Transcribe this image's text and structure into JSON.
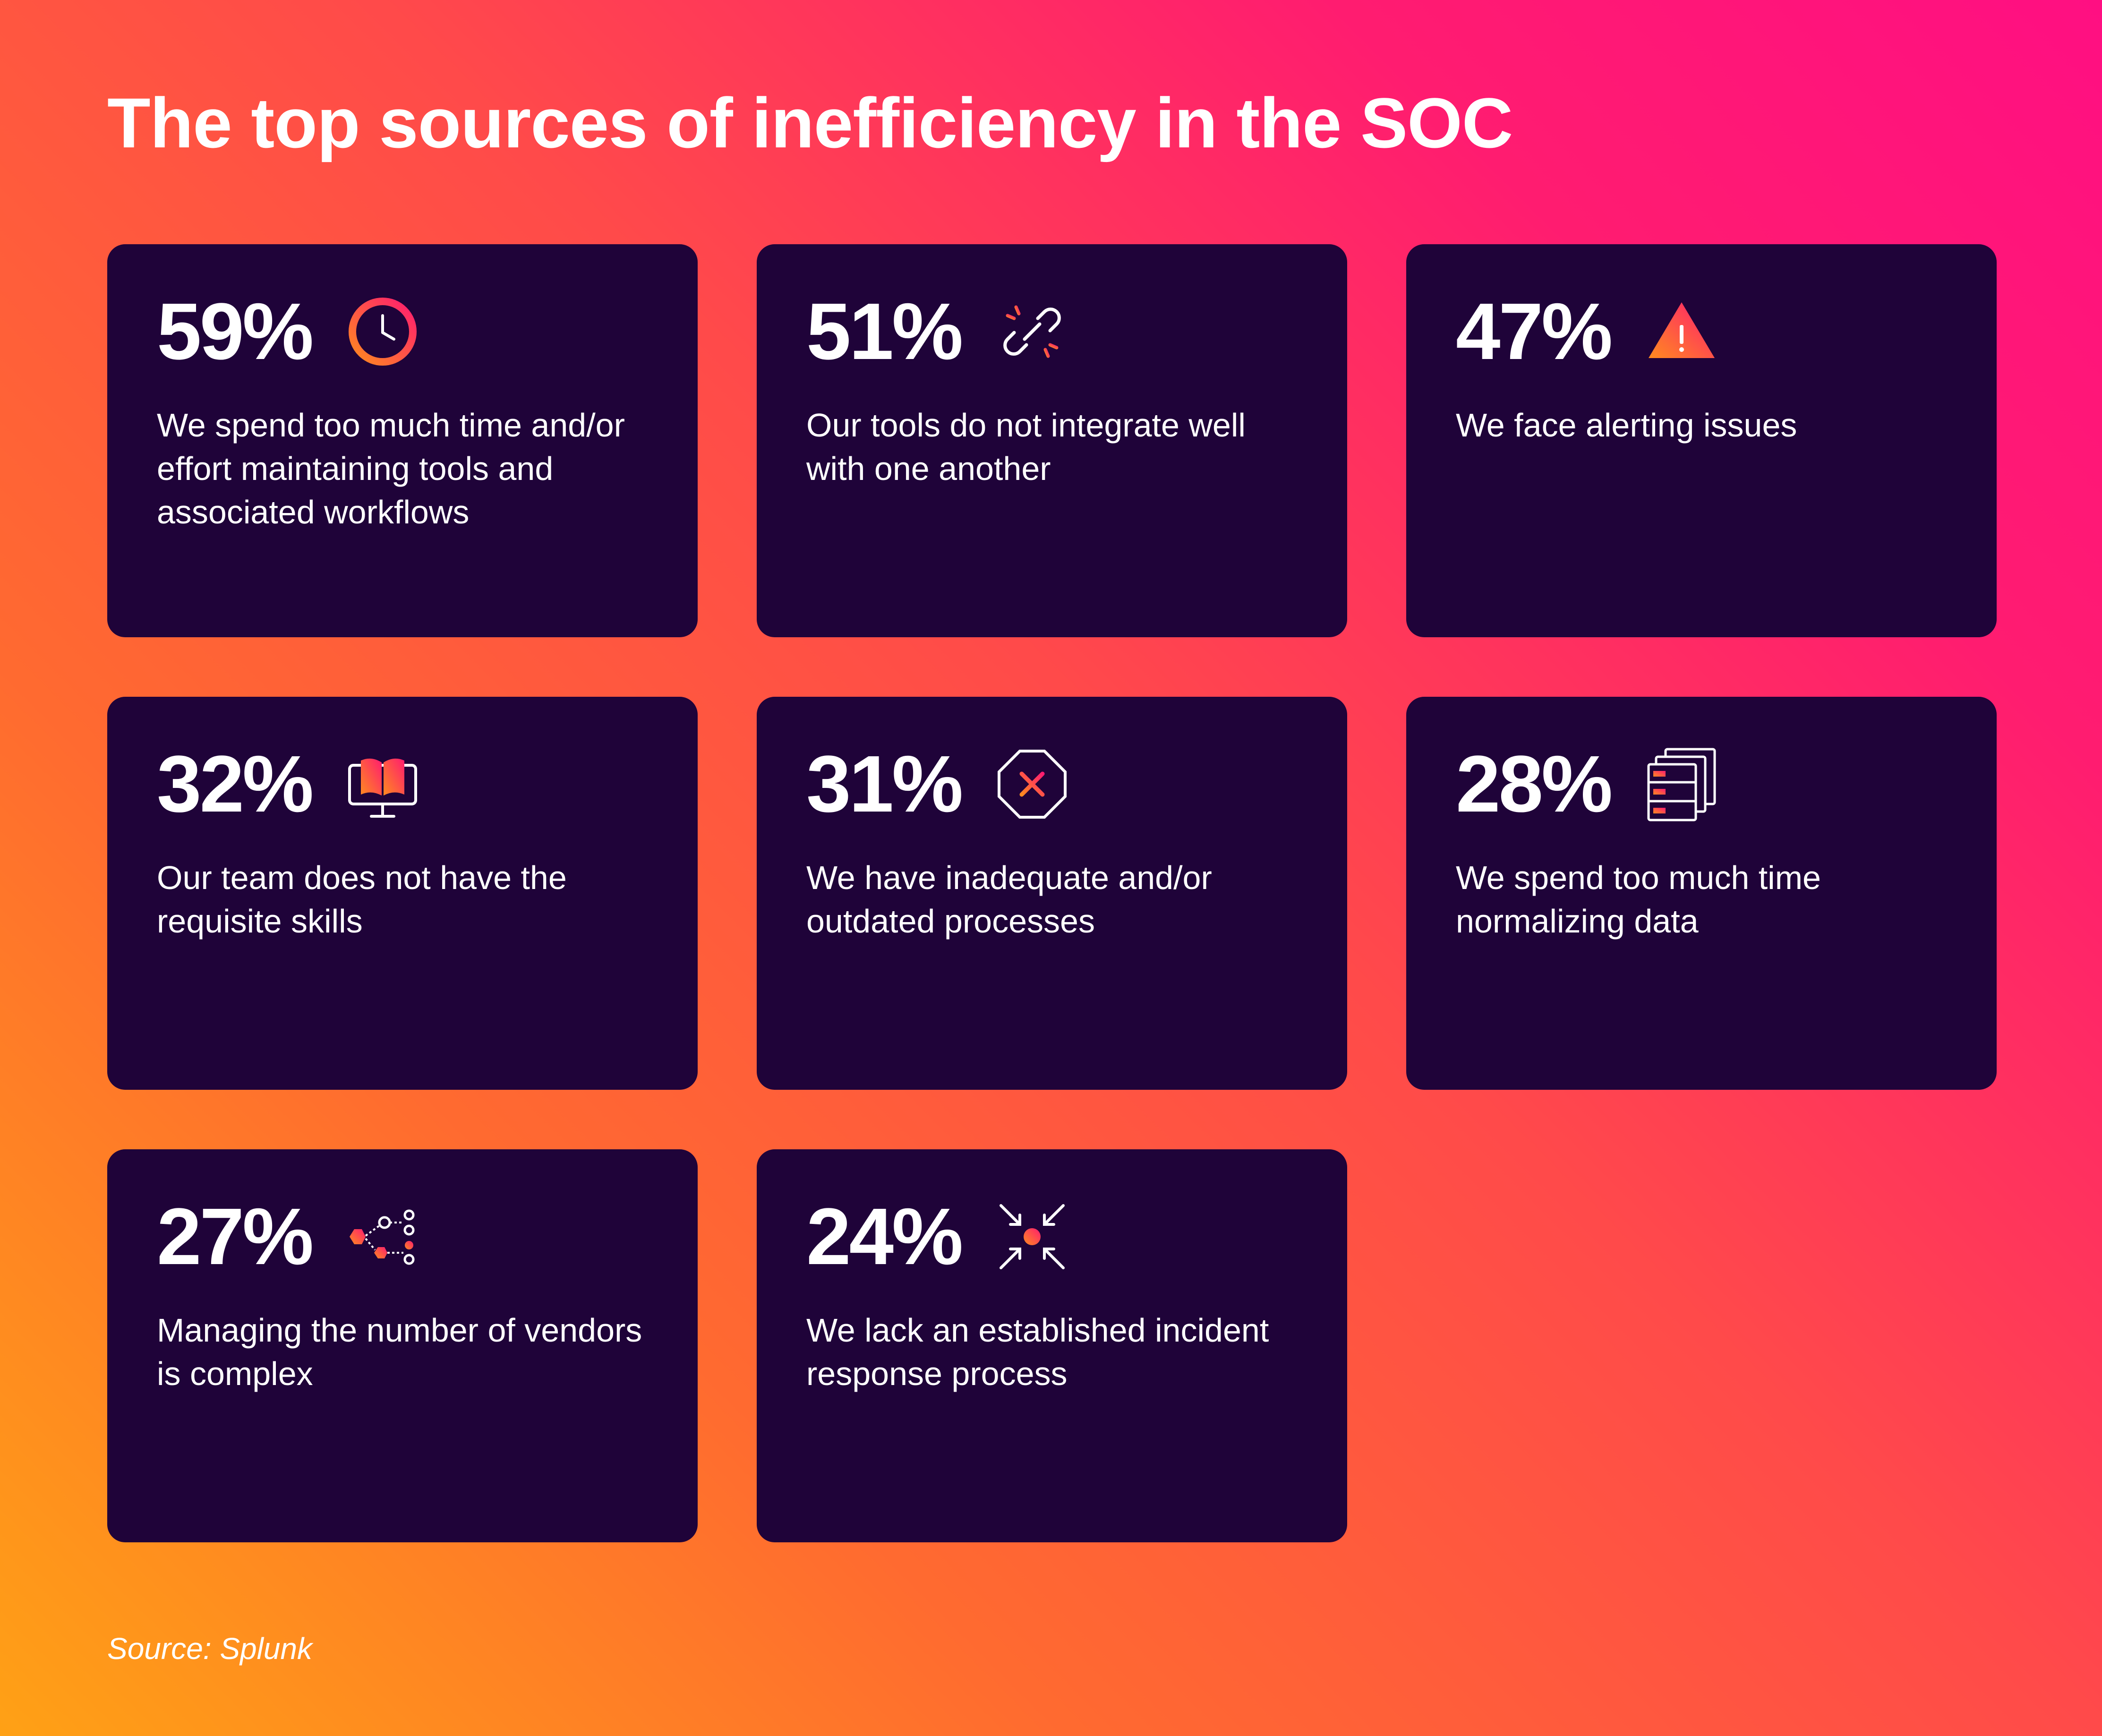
{
  "title": "The top sources of inefficiency in the SOC",
  "cards": [
    {
      "percent": "59%",
      "icon": "clock-icon",
      "text": "We spend too much time and/or effort maintaining tools and associated workflows"
    },
    {
      "percent": "51%",
      "icon": "broken-link-icon",
      "text": "Our tools do not integrate well with one another"
    },
    {
      "percent": "47%",
      "icon": "warning-triangle-icon",
      "text": "We face alerting issues"
    },
    {
      "percent": "32%",
      "icon": "book-monitor-icon",
      "text": "Our team does not have the requisite skills"
    },
    {
      "percent": "31%",
      "icon": "stop-octagon-icon",
      "text": "We have inadequate and/or outdated processes"
    },
    {
      "percent": "28%",
      "icon": "data-stack-icon",
      "text": "We spend too much time normalizing data"
    },
    {
      "percent": "27%",
      "icon": "vendor-network-icon",
      "text": "Managing the number of vendors is complex"
    },
    {
      "percent": "24%",
      "icon": "converge-arrows-icon",
      "text": "We lack an established incident response process"
    }
  ],
  "source": "Source: Splunk",
  "colors": {
    "card_bg": "#1f0339",
    "accent_orange": "#ff6a2b",
    "accent_pink": "#ff1c70",
    "gradient_start": "#ffa115",
    "gradient_end": "#ff0f82"
  }
}
